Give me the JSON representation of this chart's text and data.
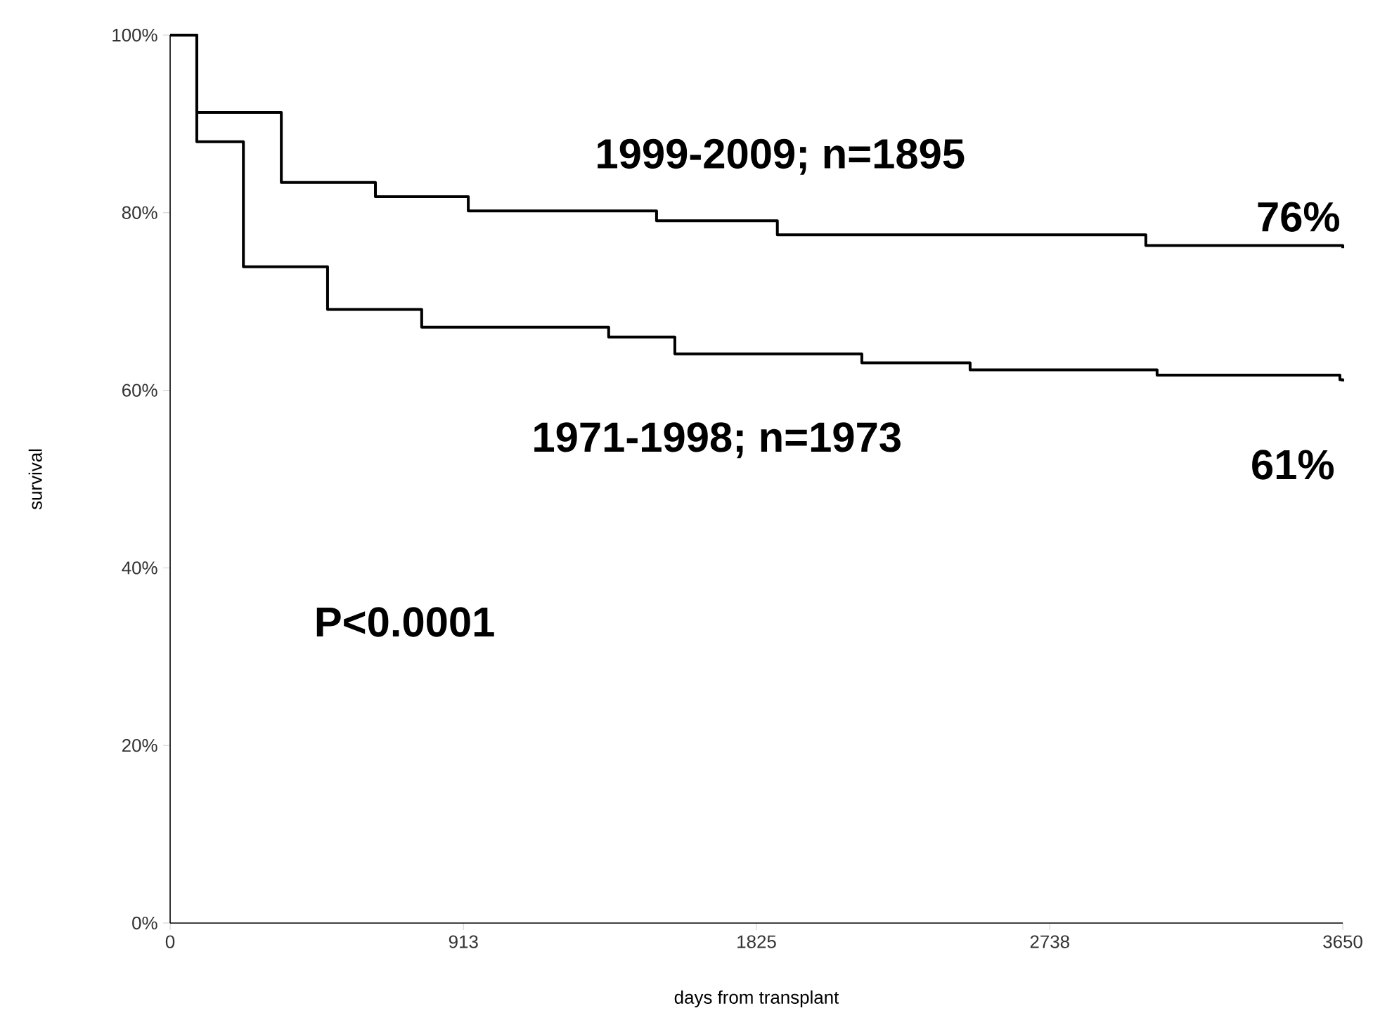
{
  "chart_data": {
    "type": "step",
    "xlabel": "days from transplant",
    "ylabel": "survival",
    "xlim": [
      0,
      3650
    ],
    "ylim": [
      0,
      100
    ],
    "xticks": [
      0,
      913,
      1825,
      2738,
      3650
    ],
    "yticks": [
      {
        "value": 0,
        "label": "0%"
      },
      {
        "value": 20,
        "label": "20%"
      },
      {
        "value": 40,
        "label": "40%"
      },
      {
        "value": 60,
        "label": "60%"
      },
      {
        "value": 80,
        "label": "80%"
      },
      {
        "value": 100,
        "label": "100%"
      }
    ],
    "grid": false,
    "marker": "none",
    "line_style": "solid",
    "series": [
      {
        "name": "1999-2009; n=1895",
        "color": "#000000",
        "x": [
          0,
          83,
          346,
          639,
          928,
          1514,
          1890,
          3037,
          3650
        ],
        "values": [
          100,
          91.3,
          83.4,
          81.8,
          80.2,
          79.1,
          77.5,
          76.3,
          76
        ]
      },
      {
        "name": "1971-1998; n=1973",
        "color": "#000000",
        "x": [
          0,
          83,
          228,
          490,
          783,
          1365,
          1571,
          2153,
          2490,
          3072,
          3641,
          3650
        ],
        "values": [
          100,
          88,
          73.9,
          69.1,
          67.1,
          66,
          64.1,
          63.1,
          62.3,
          61.7,
          61.2,
          61
        ]
      }
    ],
    "annotations": [
      {
        "text": "76%",
        "x": 3650,
        "y": 76
      },
      {
        "text": "61%",
        "x": 3650,
        "y": 61
      },
      "P<0.0001"
    ]
  }
}
